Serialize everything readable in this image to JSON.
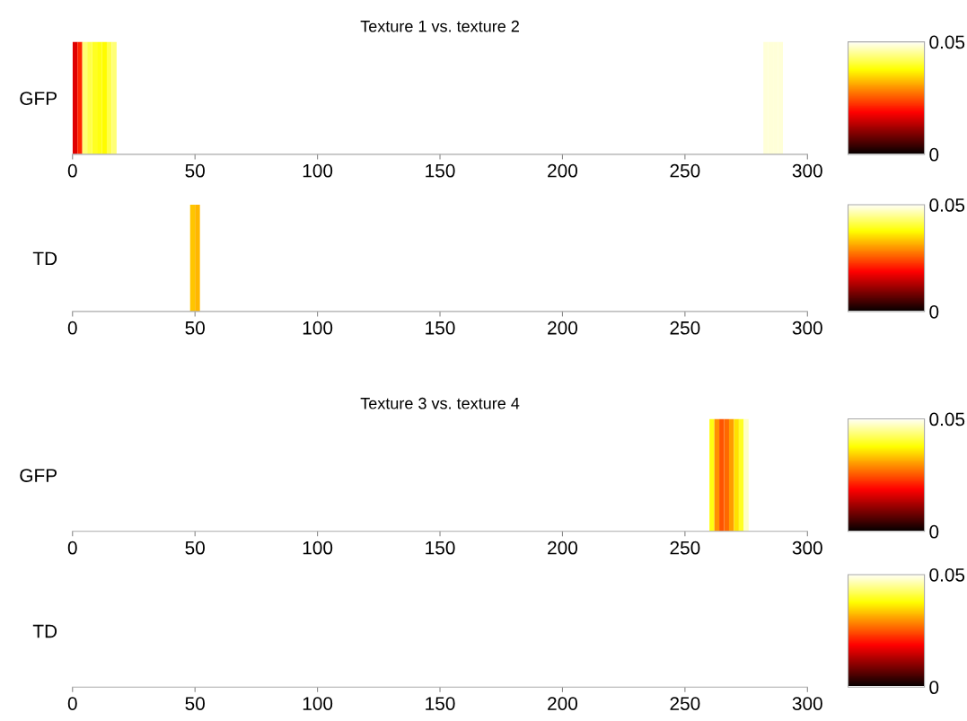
{
  "chart_data": [
    {
      "type": "heatmap",
      "title": "Texture 1 vs. texture 2",
      "y_categories": [
        "GFP"
      ],
      "xlim": [
        0,
        300
      ],
      "xticks": [
        0,
        50,
        100,
        150,
        200,
        250,
        300
      ],
      "clim": [
        0,
        0.05
      ],
      "cticks": [
        0,
        0.05
      ],
      "cells": [
        [
          0.016,
          0.021,
          0.043,
          0.041,
          0.039,
          0.038,
          0.037,
          0.041,
          0.043,
          null,
          null,
          null,
          null,
          null,
          null,
          null,
          null,
          null,
          null,
          null,
          null,
          null,
          null,
          null,
          null,
          null,
          null,
          null,
          null,
          null,
          null,
          null,
          null,
          null,
          null,
          null,
          null,
          null,
          null,
          null,
          null,
          null,
          null,
          null,
          null,
          null,
          null,
          null,
          null,
          null,
          null,
          null,
          null,
          null,
          null,
          null,
          null,
          null,
          null,
          null,
          null,
          null,
          null,
          null,
          null,
          null,
          null,
          null,
          null,
          null,
          null,
          null,
          null,
          null,
          null,
          null,
          null,
          null,
          null,
          null,
          null,
          null,
          null,
          null,
          null,
          null,
          null,
          null,
          null,
          null,
          null,
          null,
          null,
          null,
          null,
          null,
          null,
          null,
          null,
          null,
          null,
          null,
          null,
          null,
          null,
          null,
          null,
          null,
          null,
          null,
          null,
          null,
          null,
          null,
          null,
          null,
          null,
          null,
          null,
          null,
          null,
          null,
          null,
          null,
          null,
          null,
          null,
          null,
          null,
          null,
          null,
          null,
          null,
          null,
          null,
          null,
          null,
          null,
          null,
          null,
          null,
          0.048,
          0.048,
          0.048,
          0.048,
          null,
          null,
          null,
          null,
          null
        ]
      ]
    },
    {
      "type": "heatmap",
      "y_categories": [
        "TD"
      ],
      "xlim": [
        0,
        300
      ],
      "xticks": [
        0,
        50,
        100,
        150,
        200,
        250,
        300
      ],
      "clim": [
        0,
        0.05
      ],
      "cticks": [
        0,
        0.05
      ],
      "cells": [
        [
          null,
          null,
          null,
          null,
          null,
          null,
          null,
          null,
          null,
          null,
          null,
          null,
          null,
          null,
          null,
          null,
          null,
          null,
          null,
          null,
          null,
          null,
          null,
          null,
          0.033,
          0.032,
          null,
          null,
          null,
          null,
          null,
          null,
          null,
          null,
          null,
          null,
          null,
          null,
          null,
          null,
          null,
          null,
          null,
          null,
          null,
          null,
          null,
          null,
          null,
          null,
          null,
          null,
          null,
          null,
          null,
          null,
          null,
          null,
          null,
          null,
          null,
          null,
          null,
          null,
          null,
          null,
          null,
          null,
          null,
          null,
          null,
          null,
          null,
          null,
          null,
          null,
          null,
          null,
          null,
          null,
          null,
          null,
          null,
          null,
          null,
          null,
          null,
          null,
          null,
          null,
          null,
          null,
          null,
          null,
          null,
          null,
          null,
          null,
          null,
          null,
          null,
          null,
          null,
          null,
          null,
          null,
          null,
          null,
          null,
          null,
          null,
          null,
          null,
          null,
          null,
          null,
          null,
          null,
          null,
          null,
          null,
          null,
          null,
          null,
          null,
          null,
          null,
          null,
          null,
          null,
          null,
          null,
          null,
          null,
          null,
          null,
          null,
          null,
          null,
          null,
          null,
          null,
          null,
          null,
          null,
          null,
          null,
          null,
          null,
          null
        ]
      ]
    },
    {
      "type": "heatmap",
      "title": "Texture 3 vs. texture 4",
      "y_categories": [
        "GFP"
      ],
      "xlim": [
        0,
        300
      ],
      "xticks": [
        0,
        50,
        100,
        150,
        200,
        250,
        300
      ],
      "clim": [
        0,
        0.05
      ],
      "cticks": [
        0,
        0.05
      ],
      "cells": [
        [
          null,
          null,
          null,
          null,
          null,
          null,
          null,
          null,
          null,
          null,
          null,
          null,
          null,
          null,
          null,
          null,
          null,
          null,
          null,
          null,
          null,
          null,
          null,
          null,
          null,
          null,
          null,
          null,
          null,
          null,
          null,
          null,
          null,
          null,
          null,
          null,
          null,
          null,
          null,
          null,
          null,
          null,
          null,
          null,
          null,
          null,
          null,
          null,
          null,
          null,
          null,
          null,
          null,
          null,
          null,
          null,
          null,
          null,
          null,
          null,
          null,
          null,
          null,
          null,
          null,
          null,
          null,
          null,
          null,
          null,
          null,
          null,
          null,
          null,
          null,
          null,
          null,
          null,
          null,
          null,
          null,
          null,
          null,
          null,
          null,
          null,
          null,
          null,
          null,
          null,
          null,
          null,
          null,
          null,
          null,
          null,
          null,
          null,
          null,
          null,
          null,
          null,
          null,
          null,
          null,
          null,
          null,
          null,
          null,
          null,
          null,
          null,
          null,
          null,
          null,
          null,
          null,
          null,
          null,
          null,
          null,
          null,
          null,
          null,
          null,
          null,
          null,
          null,
          null,
          null,
          0.038,
          0.029,
          0.0245,
          0.026,
          0.03,
          0.035,
          0.039,
          0.047,
          null,
          null,
          null,
          null,
          null,
          null,
          null,
          null,
          null,
          null,
          null,
          null
        ]
      ]
    },
    {
      "type": "heatmap",
      "y_categories": [
        "TD"
      ],
      "xlim": [
        0,
        300
      ],
      "xticks": [
        0,
        50,
        100,
        150,
        200,
        250,
        300
      ],
      "clim": [
        0,
        0.05
      ],
      "cticks": [
        0,
        0.05
      ],
      "cells": [
        [
          null
        ]
      ]
    }
  ]
}
